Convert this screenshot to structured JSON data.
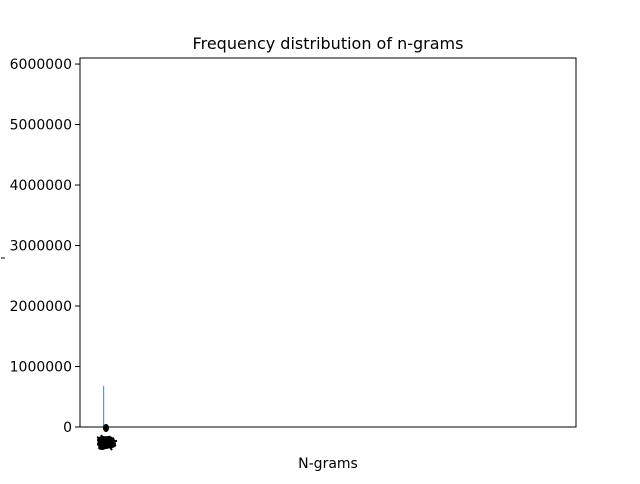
{
  "chart_data": {
    "type": "bar",
    "title": "Frequency distribution of n-grams",
    "xlabel": "N-grams",
    "ylabel": "",
    "ylim": [
      0,
      6100000
    ],
    "yticks": [
      0,
      1000000,
      2000000,
      3000000,
      4000000,
      5000000,
      6000000
    ],
    "ytick_labels": [
      "0",
      "1000000",
      "2000000",
      "3000000",
      "4000000",
      "5000000",
      "6000000"
    ],
    "bar_color": "#1f77b4",
    "series": [
      {
        "values": [
          680000
        ]
      }
    ],
    "x_tick_labels_overlapping": true,
    "grid": false,
    "legend": "none"
  }
}
